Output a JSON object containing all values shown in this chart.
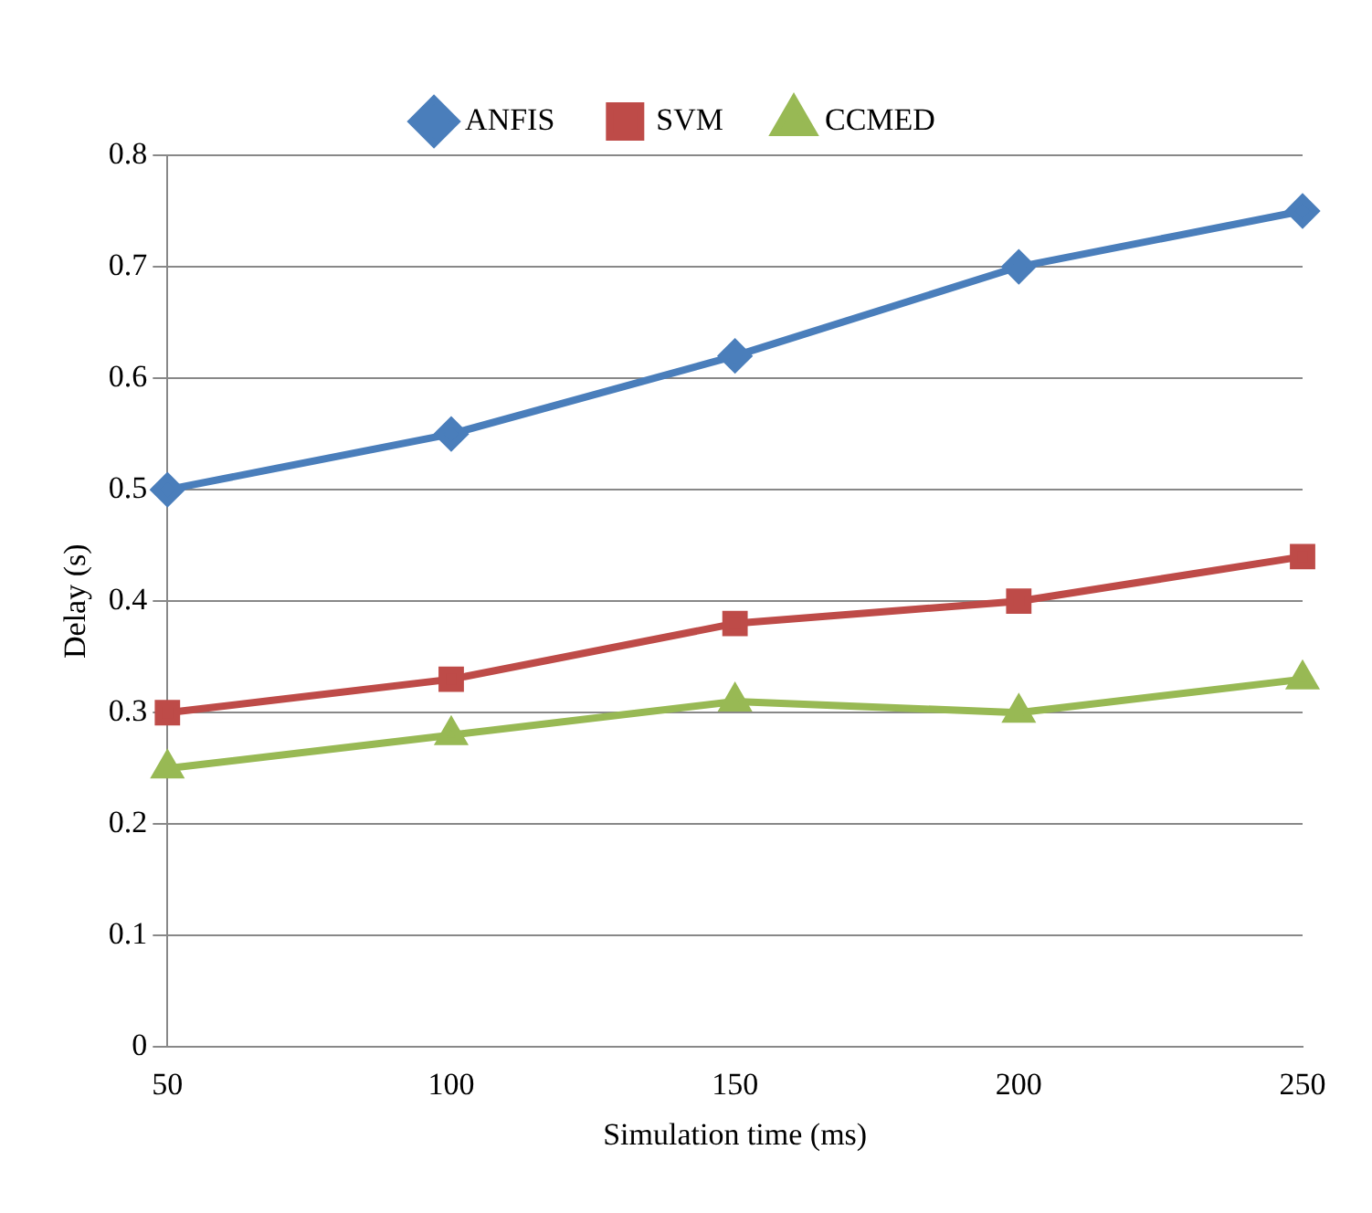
{
  "chart_data": {
    "type": "line",
    "xlabel": "Simulation time (ms)",
    "ylabel": "Delay (s)",
    "categories": [
      "50",
      "100",
      "150",
      "200",
      "250"
    ],
    "series": [
      {
        "name": "ANFIS",
        "color": "#4a7ebb",
        "marker": "diamond",
        "values": [
          0.5,
          0.55,
          0.62,
          0.7,
          0.75
        ]
      },
      {
        "name": "SVM",
        "color": "#be4b48",
        "marker": "square",
        "values": [
          0.3,
          0.33,
          0.38,
          0.4,
          0.44
        ]
      },
      {
        "name": "CCMED",
        "color": "#98b954",
        "marker": "triangle",
        "values": [
          0.25,
          0.28,
          0.31,
          0.3,
          0.33
        ]
      }
    ],
    "ylim": [
      0,
      0.8
    ],
    "yticks": [
      0,
      0.1,
      0.2,
      0.3,
      0.4,
      0.5,
      0.6,
      0.7,
      0.8
    ],
    "grid": "y",
    "legend": "top",
    "line_style": "solid"
  }
}
